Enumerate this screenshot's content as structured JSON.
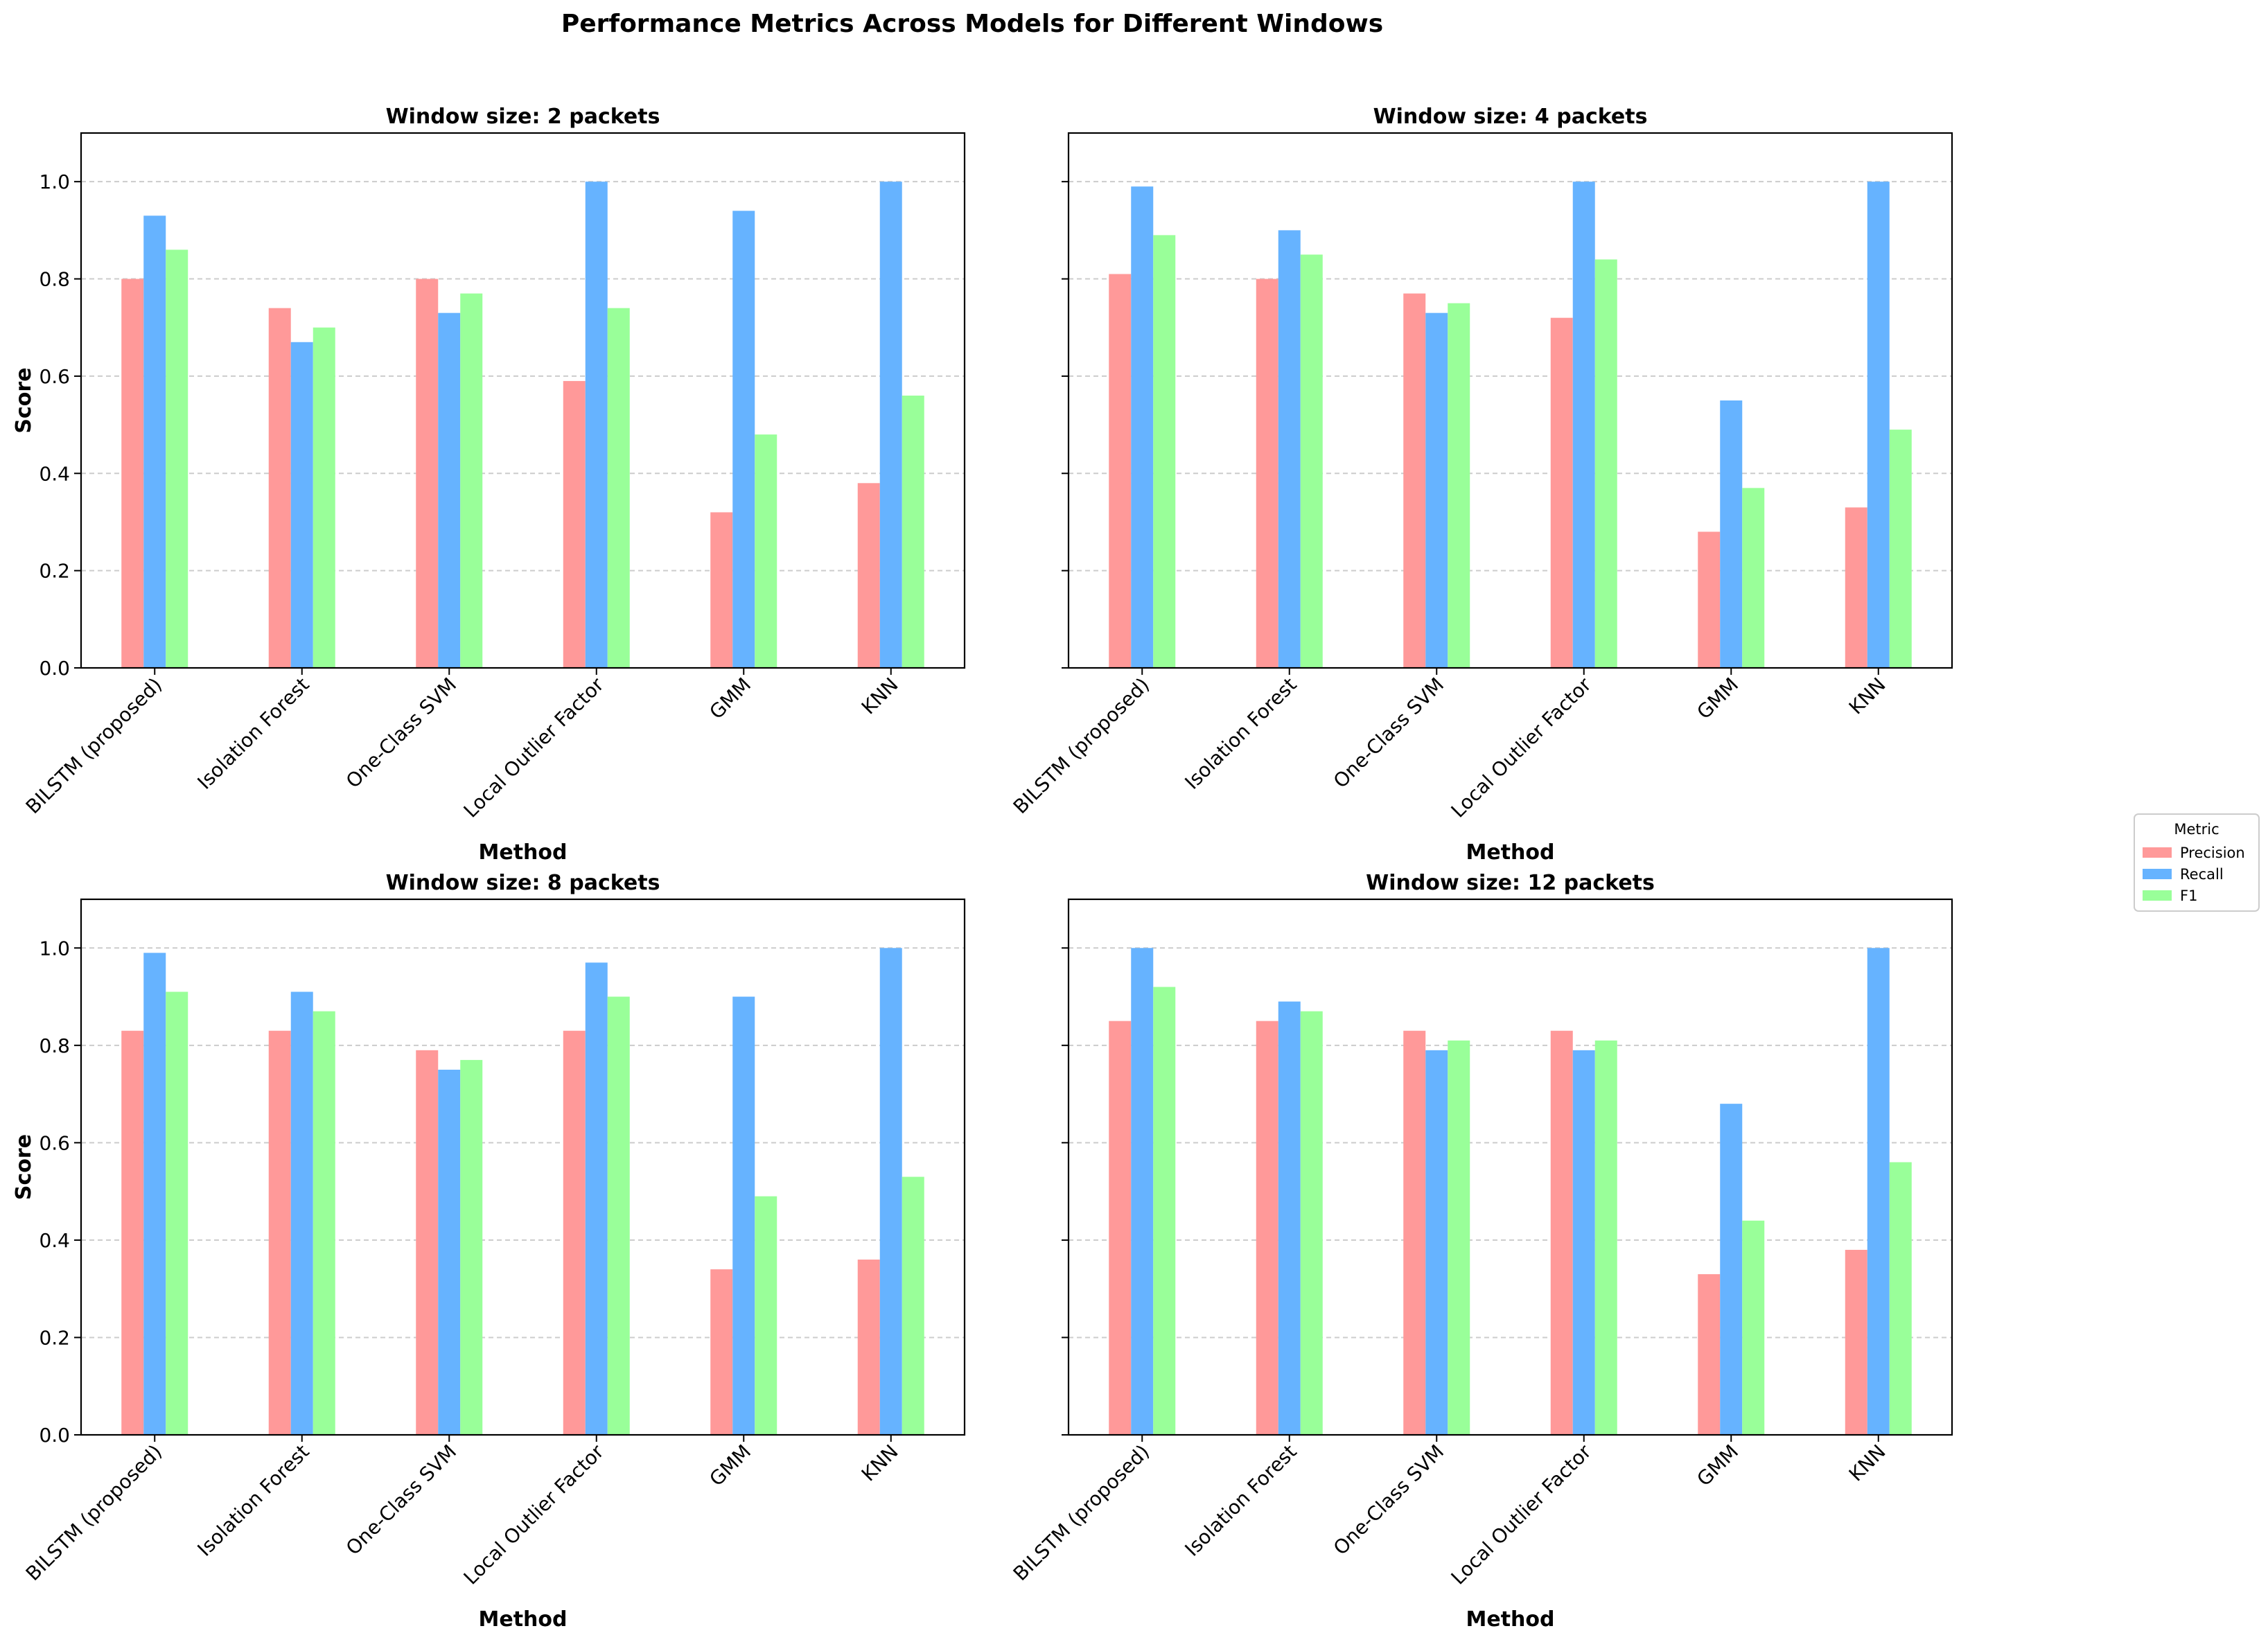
{
  "chart_data": {
    "type": "bar",
    "title": "Performance Metrics Across Models for Different Windows",
    "legend": {
      "title": "Metric",
      "placement": "right",
      "entries": [
        "Precision",
        "Recall",
        "F1"
      ]
    },
    "colors": {
      "Precision": "#ff9999",
      "Recall": "#66b3ff",
      "F1": "#99ff99"
    },
    "categories": [
      "BILSTM (proposed)",
      "Isolation Forest",
      "One-Class SVM",
      "Local Outlier Factor",
      "GMM",
      "KNN"
    ],
    "xlabel": "Method",
    "ylabel": "Score",
    "ylim": [
      0,
      1.1
    ],
    "yticks": [
      "0.0",
      "0.2",
      "0.4",
      "0.6",
      "0.8",
      "1.0"
    ],
    "grid": "y-dashed",
    "panels": [
      {
        "title": "Window size: 2 packets",
        "series": [
          {
            "name": "Precision",
            "values": [
              0.8,
              0.74,
              0.8,
              0.59,
              0.32,
              0.38
            ]
          },
          {
            "name": "Recall",
            "values": [
              0.93,
              0.67,
              0.73,
              1.0,
              0.94,
              1.0
            ]
          },
          {
            "name": "F1",
            "values": [
              0.86,
              0.7,
              0.77,
              0.74,
              0.48,
              0.56
            ]
          }
        ]
      },
      {
        "title": "Window size: 4 packets",
        "series": [
          {
            "name": "Precision",
            "values": [
              0.81,
              0.8,
              0.77,
              0.72,
              0.28,
              0.33
            ]
          },
          {
            "name": "Recall",
            "values": [
              0.99,
              0.9,
              0.73,
              1.0,
              0.55,
              1.0
            ]
          },
          {
            "name": "F1",
            "values": [
              0.89,
              0.85,
              0.75,
              0.84,
              0.37,
              0.49
            ]
          }
        ]
      },
      {
        "title": "Window size: 8 packets",
        "series": [
          {
            "name": "Precision",
            "values": [
              0.83,
              0.83,
              0.79,
              0.83,
              0.34,
              0.36
            ]
          },
          {
            "name": "Recall",
            "values": [
              0.99,
              0.91,
              0.75,
              0.97,
              0.9,
              1.0
            ]
          },
          {
            "name": "F1",
            "values": [
              0.91,
              0.87,
              0.77,
              0.9,
              0.49,
              0.53
            ]
          }
        ]
      },
      {
        "title": "Window size: 12 packets",
        "series": [
          {
            "name": "Precision",
            "values": [
              0.85,
              0.85,
              0.83,
              0.83,
              0.33,
              0.38
            ]
          },
          {
            "name": "Recall",
            "values": [
              1.0,
              0.89,
              0.79,
              0.79,
              0.68,
              1.0
            ]
          },
          {
            "name": "F1",
            "values": [
              0.92,
              0.87,
              0.81,
              0.81,
              0.44,
              0.56
            ]
          }
        ]
      }
    ]
  }
}
